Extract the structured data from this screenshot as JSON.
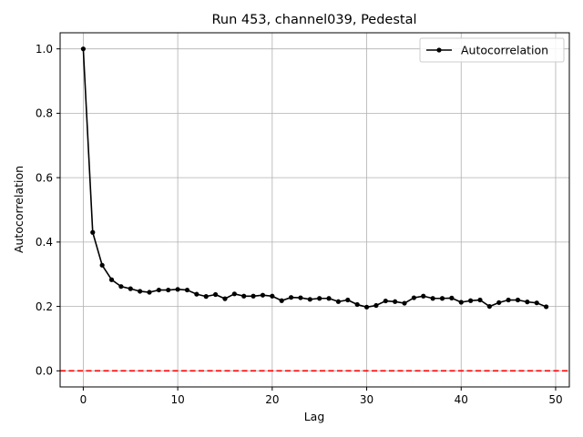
{
  "chart_data": {
    "type": "line",
    "title": "Run 453, channel039, Pedestal",
    "xlabel": "Lag",
    "ylabel": "Autocorrelation",
    "xlim": [
      -2.45,
      51.45
    ],
    "ylim": [
      -0.05,
      1.05
    ],
    "xticks": [
      0,
      10,
      20,
      30,
      40,
      50
    ],
    "yticks": [
      0.0,
      0.2,
      0.4,
      0.6,
      0.8,
      1.0
    ],
    "grid": true,
    "legend_position": "top-right",
    "series": [
      {
        "name": "Autocorrelation",
        "color": "#000000",
        "marker": "circle",
        "x": [
          0,
          1,
          2,
          3,
          4,
          5,
          6,
          7,
          8,
          9,
          10,
          11,
          12,
          13,
          14,
          15,
          16,
          17,
          18,
          19,
          20,
          21,
          22,
          23,
          24,
          25,
          26,
          27,
          28,
          29,
          30,
          31,
          32,
          33,
          34,
          35,
          36,
          37,
          38,
          39,
          40,
          41,
          42,
          43,
          44,
          45,
          46,
          47,
          48,
          49
        ],
        "y": [
          1.0,
          0.43,
          0.328,
          0.283,
          0.262,
          0.255,
          0.247,
          0.244,
          0.251,
          0.251,
          0.253,
          0.251,
          0.238,
          0.231,
          0.237,
          0.224,
          0.239,
          0.232,
          0.232,
          0.235,
          0.232,
          0.218,
          0.228,
          0.227,
          0.222,
          0.225,
          0.225,
          0.215,
          0.22,
          0.206,
          0.198,
          0.203,
          0.217,
          0.215,
          0.21,
          0.227,
          0.232,
          0.225,
          0.225,
          0.226,
          0.213,
          0.218,
          0.22,
          0.2,
          0.212,
          0.22,
          0.22,
          0.214,
          0.211,
          0.199
        ]
      }
    ],
    "reference_line": {
      "y": 0.0,
      "color": "#ff0000",
      "style": "dashed"
    }
  }
}
